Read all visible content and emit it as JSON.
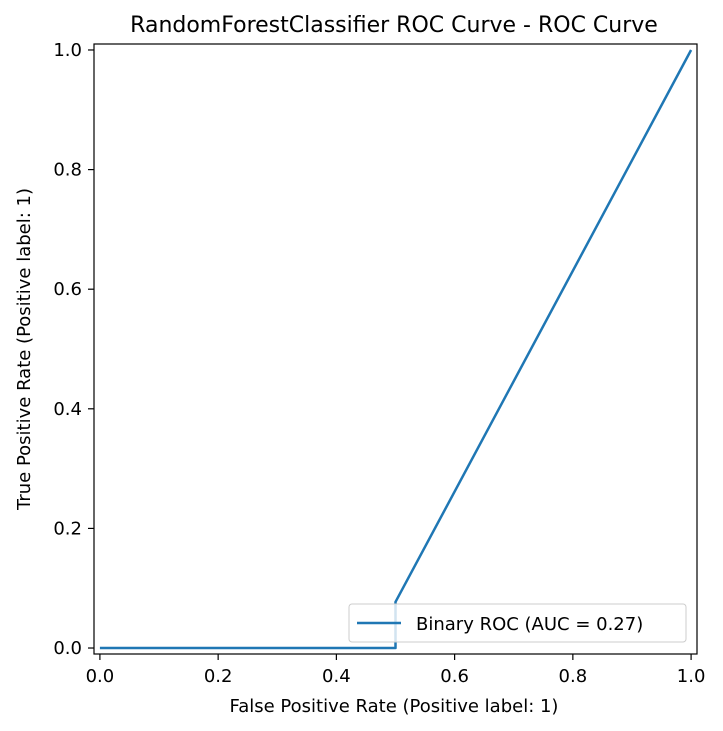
{
  "chart_data": {
    "type": "line",
    "title": "RandomForestClassifier ROC Curve - ROC Curve",
    "xlabel": "False Positive Rate (Positive label: 1)",
    "ylabel": "True Positive Rate (Positive label: 1)",
    "xlim": [
      -0.01,
      1.01
    ],
    "ylim": [
      -0.01,
      1.01
    ],
    "xticks": [
      0.0,
      0.2,
      0.4,
      0.6,
      0.8,
      1.0
    ],
    "xtick_labels": [
      "0.0",
      "0.2",
      "0.4",
      "0.6",
      "0.8",
      "1.0"
    ],
    "yticks": [
      0.0,
      0.2,
      0.4,
      0.6,
      0.8,
      1.0
    ],
    "ytick_labels": [
      "0.0",
      "0.2",
      "0.4",
      "0.6",
      "0.8",
      "1.0"
    ],
    "grid": false,
    "legend_position": "lower-right",
    "series": [
      {
        "name": "Binary ROC (AUC = 0.27)",
        "color": "#1f77b4",
        "x": [
          0.0,
          0.5,
          0.5,
          1.0
        ],
        "y": [
          0.0,
          0.0,
          0.077,
          1.0
        ]
      }
    ]
  }
}
